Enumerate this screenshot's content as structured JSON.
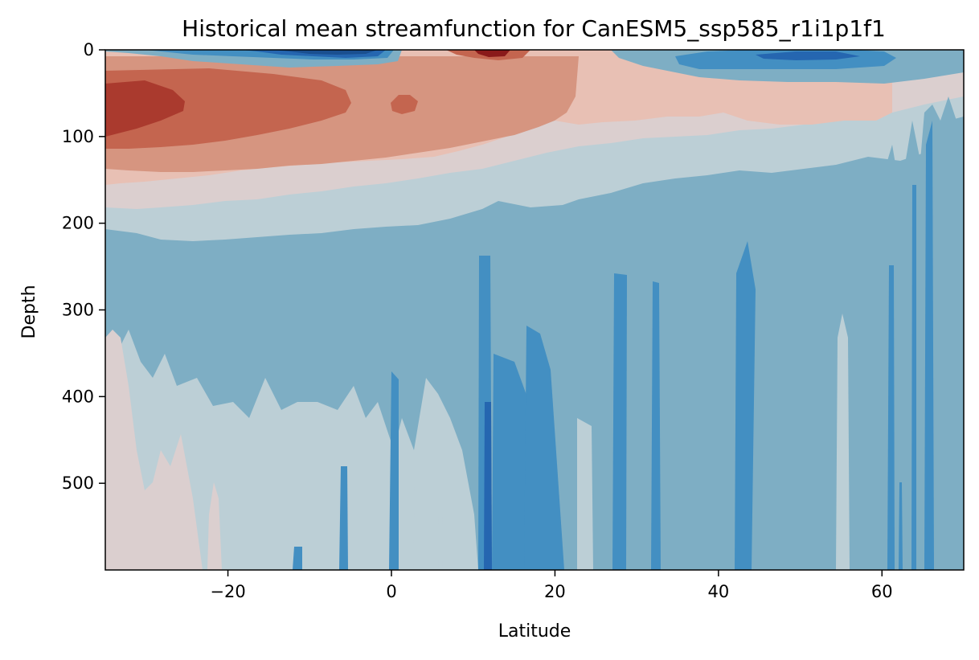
{
  "chart_data": {
    "type": "heatmap",
    "title": "Historical mean streamfunction for CanESM5_ssp585_r1i1p1f1",
    "xlabel": "Latitude",
    "ylabel": "Depth",
    "xlim": [
      -35,
      70
    ],
    "ylim": [
      600,
      0
    ],
    "x_ticks": [
      -20,
      0,
      20,
      40,
      60
    ],
    "x_tick_labels": [
      "−20",
      "0",
      "20",
      "40",
      "60"
    ],
    "y_ticks": [
      0,
      100,
      200,
      300,
      400,
      500
    ],
    "y_tick_labels": [
      "0",
      "100",
      "200",
      "300",
      "400",
      "500"
    ],
    "colormap": "RdBu_r",
    "grid": false,
    "legend": "none",
    "level_colors": {
      "deep_blue": "#1a4f8f",
      "strong_blue": "#2566b0",
      "mid_blue": "#438fc2",
      "light_blue": "#7eaec4",
      "pale_blue": "#bccfd6",
      "neutral": "#dbcfcf",
      "pale_red": "#e8c0b4",
      "light_red": "#d69580",
      "mid_red": "#c4654f",
      "dark_red": "#aa3a2e",
      "deep_red": "#8a1a1a"
    },
    "regions": [
      {
        "level": "neutral",
        "lat": [
          -35,
          -17
        ],
        "depth": [
          410,
          600
        ]
      },
      {
        "level": "pale_blue",
        "lat": [
          -35,
          12
        ],
        "depth": [
          210,
          600
        ]
      },
      {
        "level": "light_blue",
        "lat": [
          -35,
          70
        ],
        "depth": [
          200,
          600
        ]
      },
      {
        "level": "pale_blue",
        "lat": [
          -35,
          70
        ],
        "depth": [
          130,
          210
        ]
      },
      {
        "level": "light_red",
        "lat": [
          -35,
          22
        ],
        "depth": [
          30,
          130
        ]
      },
      {
        "level": "mid_red",
        "lat": [
          -35,
          -5
        ],
        "depth": [
          40,
          110
        ]
      },
      {
        "level": "dark_red",
        "lat": [
          -35,
          -25
        ],
        "depth": [
          50,
          90
        ]
      },
      {
        "level": "mid_blue",
        "lat": [
          -30,
          0
        ],
        "depth": [
          0,
          8
        ]
      },
      {
        "level": "deep_blue",
        "lat": [
          -15,
          -2
        ],
        "depth": [
          0,
          5
        ]
      },
      {
        "level": "dark_red",
        "lat": [
          10,
          16
        ],
        "depth": [
          0,
          8
        ]
      },
      {
        "level": "mid_blue",
        "lat": [
          42,
          65
        ],
        "depth": [
          0,
          18
        ]
      },
      {
        "level": "mid_blue",
        "lat": [
          11,
          16
        ],
        "depth": [
          235,
          600
        ]
      },
      {
        "level": "mid_blue",
        "lat": [
          42,
          44
        ],
        "depth": [
          215,
          600
        ]
      },
      {
        "level": "pale_blue",
        "lat": [
          54,
          56
        ],
        "depth": [
          300,
          600
        ]
      }
    ]
  }
}
